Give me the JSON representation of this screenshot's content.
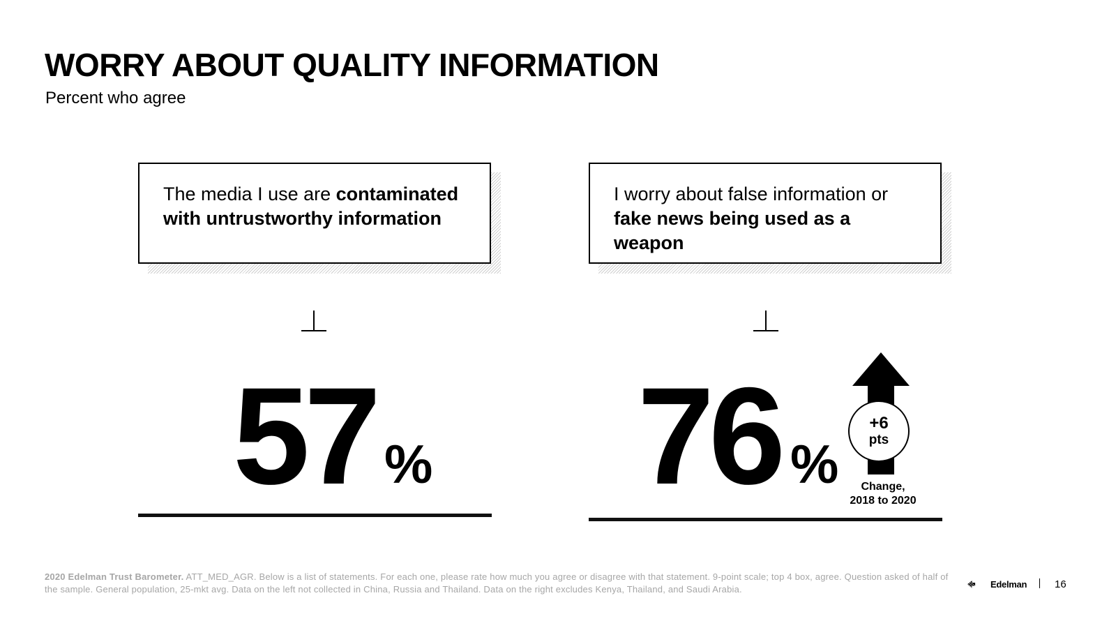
{
  "header": {
    "title": "WORRY ABOUT QUALITY INFORMATION",
    "subtitle": "Percent who agree"
  },
  "cards": [
    {
      "statement_plain": "The media I use are ",
      "statement_bold": "contaminated with untrustworthy information",
      "value": "57",
      "unit": "%"
    },
    {
      "statement_plain": "I worry about false information or ",
      "statement_bold": "fake news being used as a weapon",
      "value": "76",
      "unit": "%",
      "change": {
        "value": "+6",
        "unit": "pts",
        "caption_line1": "Change,",
        "caption_line2": "2018 to 2020"
      }
    }
  ],
  "footer": {
    "source_bold": "2020 Edelman Trust Barometer.",
    "source_text": " ATT_MED_AGR. Below is a list of statements. For each one, please rate how much you agree or disagree with that statement. 9-point scale; top 4 box, agree. Question asked of half of the sample. General population, 25-mkt avg. Data on the left not collected in China, Russia and Thailand. Data on the right excludes Kenya, Thailand, and Saudi Arabia.",
    "logo_text": "Edelman",
    "page_number": "16"
  },
  "colors": {
    "text": "#000000",
    "footnote": "#a6a6a6",
    "background": "#ffffff"
  }
}
